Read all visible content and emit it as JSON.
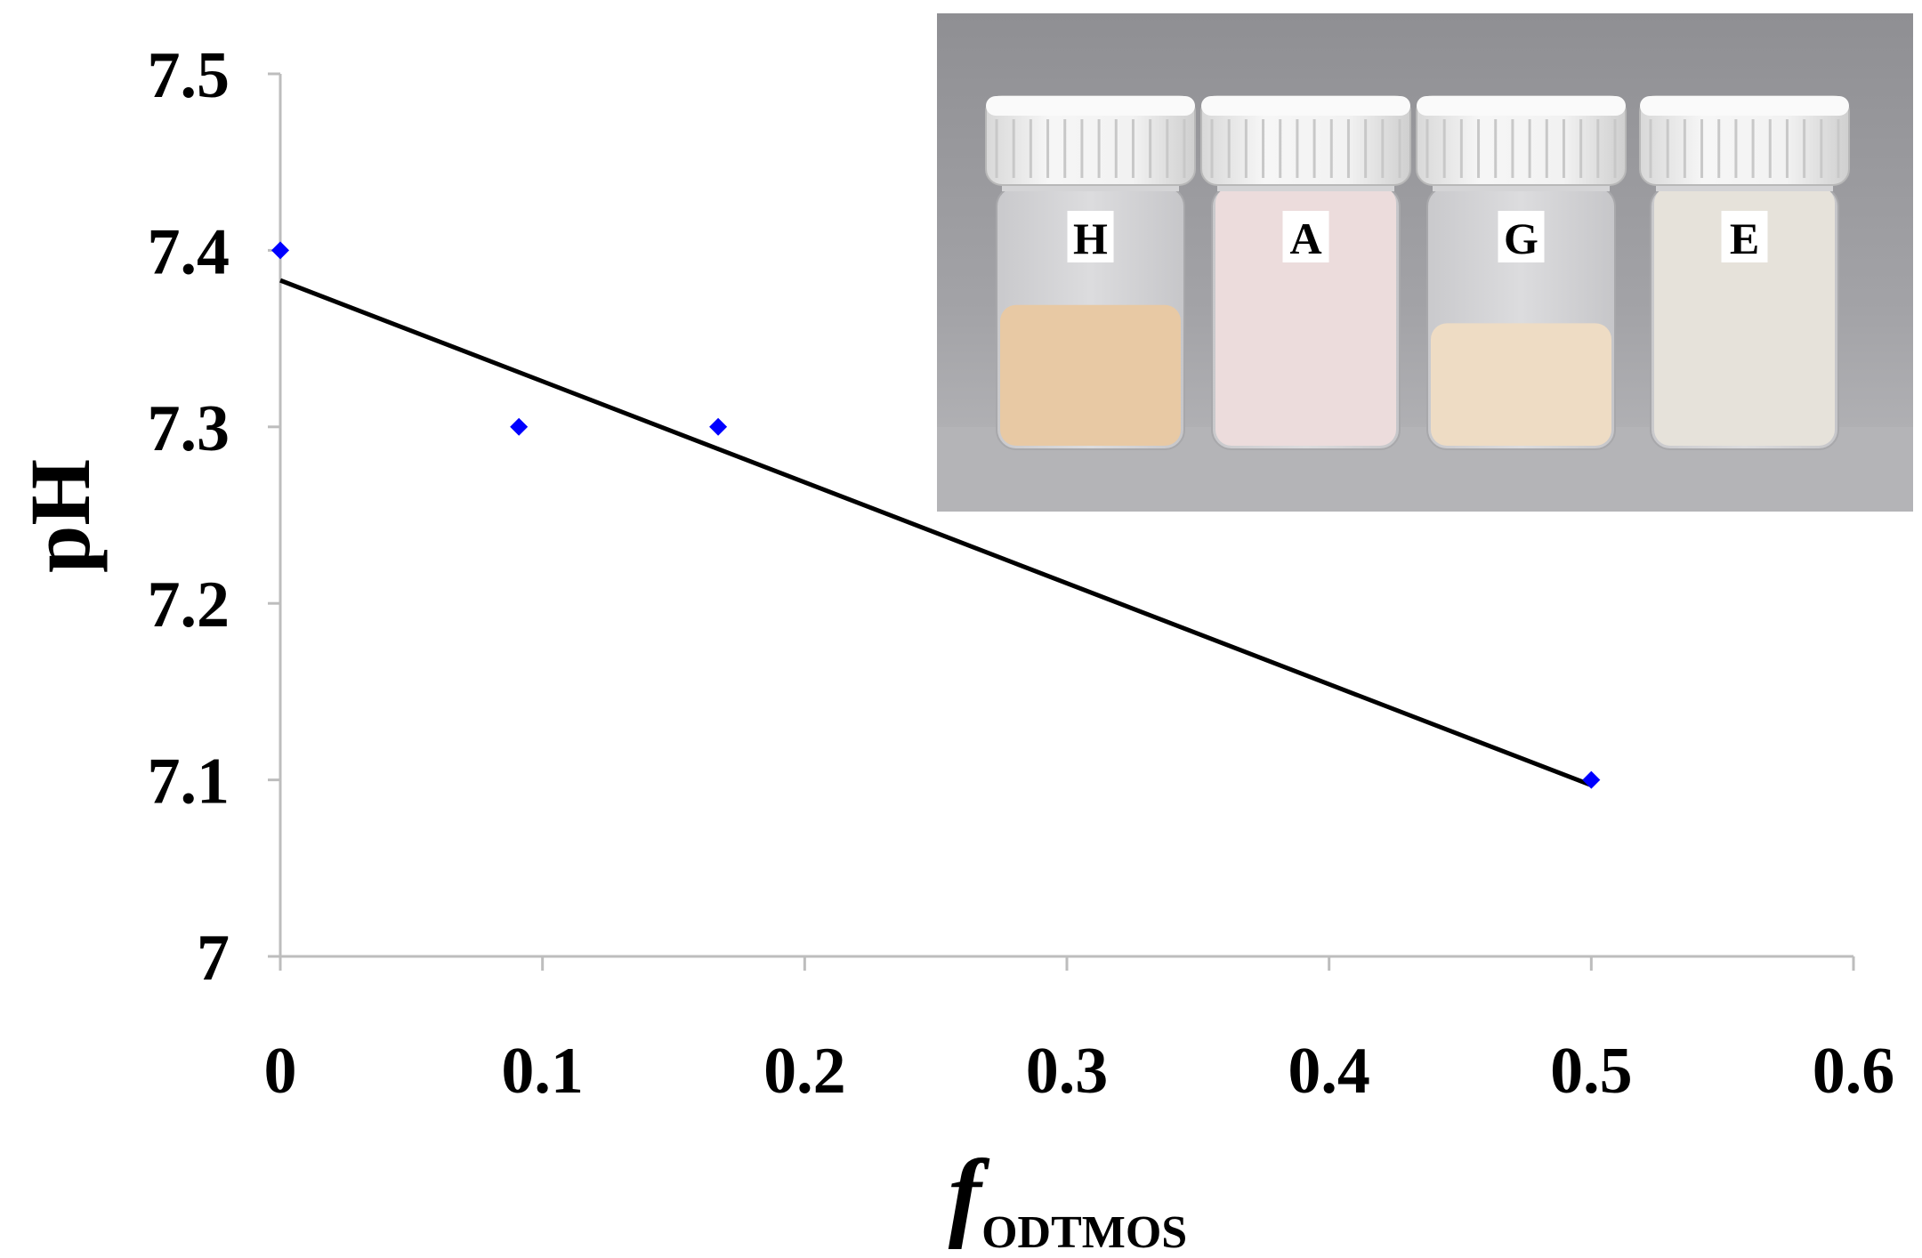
{
  "chart_data": {
    "type": "scatter",
    "title": "",
    "xlabel_main": "f",
    "xlabel_sub": "ODTMOS",
    "ylabel": "pH",
    "xlim": [
      0,
      0.6
    ],
    "ylim": [
      7.0,
      7.5
    ],
    "x_ticks": [
      "0",
      "0.1",
      "0.2",
      "0.3",
      "0.4",
      "0.5",
      "0.6"
    ],
    "y_ticks": [
      "7",
      "7.1",
      "7.2",
      "7.3",
      "7.4",
      "7.5"
    ],
    "x_tick_values": [
      0,
      0.1,
      0.2,
      0.3,
      0.4,
      0.5,
      0.6
    ],
    "y_tick_values": [
      7.0,
      7.1,
      7.2,
      7.3,
      7.4,
      7.5
    ],
    "grid": false,
    "legend": "none",
    "series": [
      {
        "marker": "diamond",
        "color": "#0000ff",
        "x": [
          0,
          0.091,
          0.167,
          0.5
        ],
        "y": [
          7.4,
          7.3,
          7.3,
          7.1
        ]
      }
    ],
    "trendline": {
      "type": "linear",
      "color": "#000000",
      "x": [
        0,
        0.5
      ],
      "y": [
        7.383,
        7.097
      ]
    }
  },
  "inset_photo": {
    "vials": [
      {
        "label": "H",
        "content_color": "#e8c9a4",
        "fill_level": 0.55
      },
      {
        "label": "A",
        "content_color": "#ecdcdc",
        "fill_level": 1.0
      },
      {
        "label": "G",
        "content_color": "#eedcc4",
        "fill_level": 0.48
      },
      {
        "label": "E",
        "content_color": "#e6e2da",
        "fill_level": 1.0
      }
    ]
  }
}
